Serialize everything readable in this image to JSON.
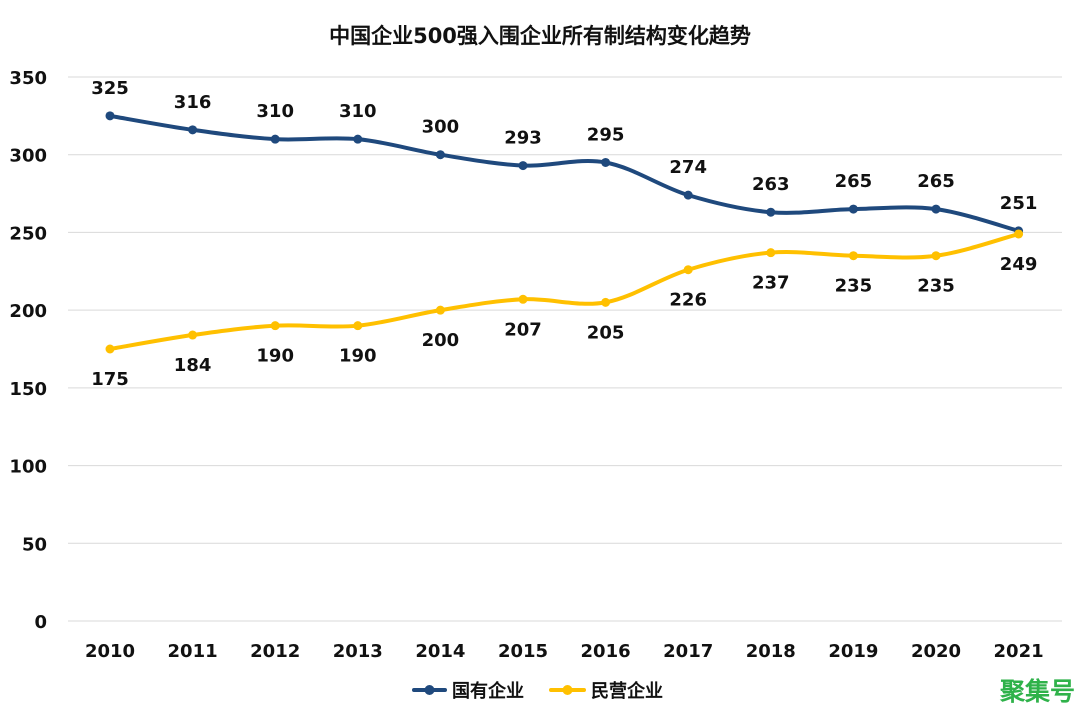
{
  "chart_data": {
    "type": "line",
    "title": "中国企业500强入围企业所有制结构变化趋势",
    "xlabel": "",
    "ylabel": "",
    "categories": [
      "2010",
      "2011",
      "2012",
      "2013",
      "2014",
      "2015",
      "2016",
      "2017",
      "2018",
      "2019",
      "2020",
      "2021"
    ],
    "ylim": [
      0,
      350
    ],
    "yticks": [
      0,
      50,
      100,
      150,
      200,
      250,
      300,
      350
    ],
    "grid": true,
    "legend_position": "bottom-center",
    "series": [
      {
        "name": "国有企业",
        "values": [
          325,
          316,
          310,
          310,
          300,
          293,
          295,
          274,
          263,
          265,
          265,
          251
        ],
        "color": "#1f497d",
        "label_position": "above"
      },
      {
        "name": "民营企业",
        "values": [
          175,
          184,
          190,
          190,
          200,
          207,
          205,
          226,
          237,
          235,
          235,
          249
        ],
        "color": "#ffc000",
        "label_position": "below"
      }
    ]
  },
  "watermark": {
    "text": "聚集号",
    "color": "#2fb24a"
  }
}
